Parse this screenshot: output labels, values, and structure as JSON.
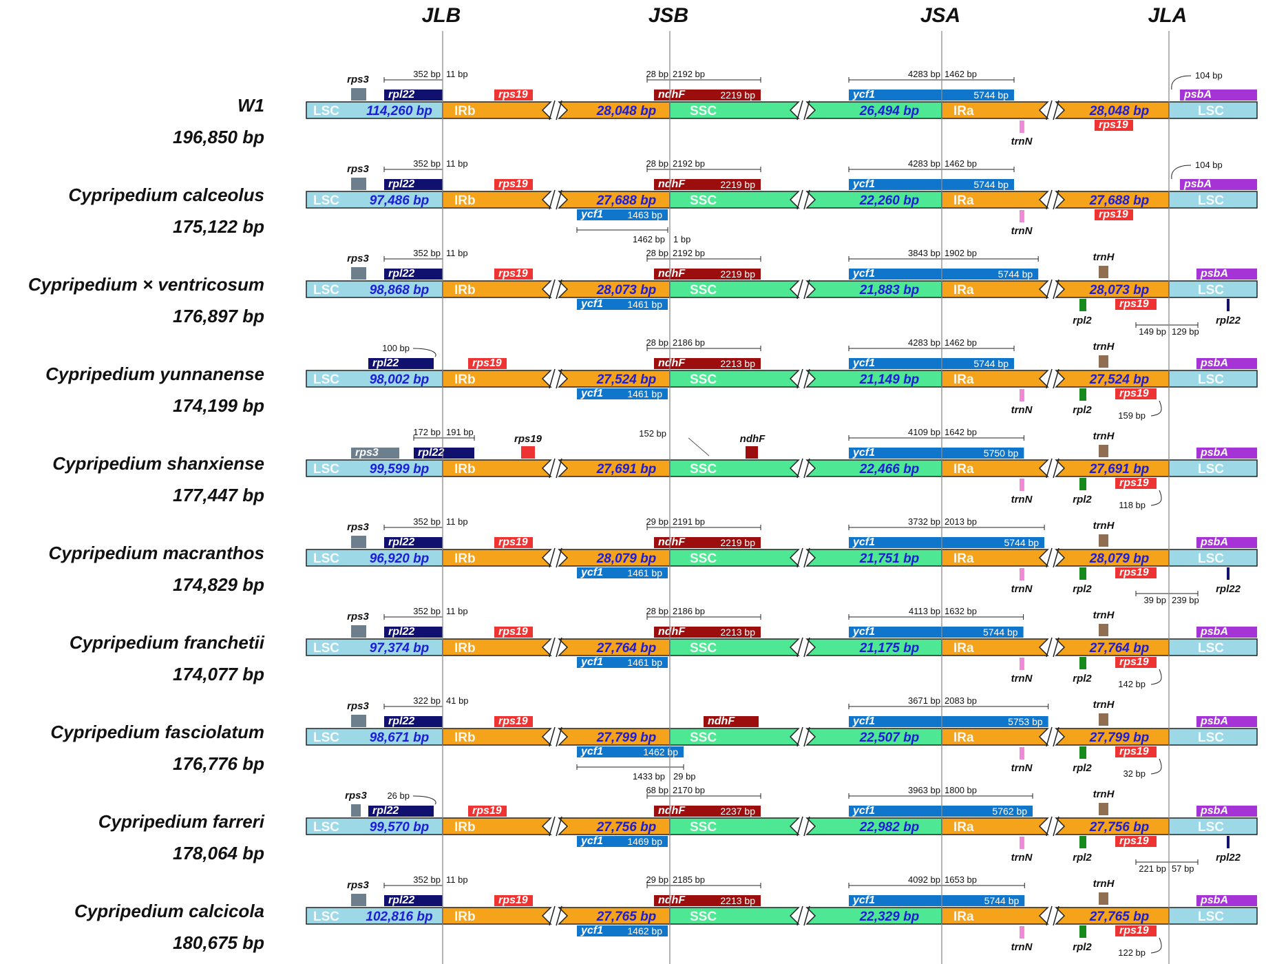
{
  "junctions": [
    "JLB",
    "JSB",
    "JSA",
    "JLA"
  ],
  "region_labels": {
    "lsc": "LSC",
    "irb": "IRb",
    "ssc": "SSC",
    "ira": "IRa"
  },
  "colors": {
    "lsc": "#9cd8e6",
    "ir": "#f5a31a",
    "ssc": "#4ee895",
    "gene_dark_navy": "#10106e",
    "gene_red": "#ee3333",
    "gene_dark_red": "#9c0d0d",
    "gene_blue": "#1076cc",
    "gene_purple": "#a633d6",
    "gene_grey": "#6d7f8d",
    "gene_brown": "#8f6e52",
    "gene_green": "#168a1c",
    "gene_pink": "#f08ad6",
    "length_text": "#1d1dd6"
  },
  "species": [
    {
      "name": "W1",
      "total": "196,850 bp",
      "lsc": "114,260 bp",
      "ir": "28,048 bp",
      "ssc": "26,494 bp",
      "jlb": {
        "left": "352 bp",
        "right": "11 bp"
      },
      "jsb": {
        "left": "28 bp",
        "right": "2192 bp",
        "ndhf_len": "2219 bp"
      },
      "jsa": {
        "left": "4283 bp",
        "right": "1462 bp",
        "ycf1_len": "5744 bp"
      },
      "jla": {
        "psba": "104 bp"
      }
    },
    {
      "name": "Cypripedium  calceolus",
      "total": "175,122 bp",
      "lsc": "97,486 bp",
      "ir": "27,688 bp",
      "ssc": "22,260 bp",
      "jlb": {
        "left": "352 bp",
        "right": "11 bp"
      },
      "jsb": {
        "left": "28 bp",
        "right": "2192 bp",
        "ndhf_len": "2219 bp",
        "ycf1_len": "1463 bp",
        "below_left": "1462 bp",
        "below_right": "1 bp"
      },
      "jsa": {
        "left": "4283 bp",
        "right": "1462 bp",
        "ycf1_len": "5744 bp"
      },
      "jla": {
        "psba": "104 bp"
      }
    },
    {
      "name": "Cypripedium  ×  ventricosum",
      "total": "176,897 bp",
      "lsc": "98,868 bp",
      "ir": "28,073 bp",
      "ssc": "21,883 bp",
      "jlb": {
        "left": "352 bp",
        "right": "11 bp"
      },
      "jsb": {
        "left": "28 bp",
        "right": "2192 bp",
        "ndhf_len": "2219 bp",
        "ycf1_len": "1461 bp"
      },
      "jsa": {
        "left": "3843 bp",
        "right": "1902 bp",
        "ycf1_len": "5744 bp"
      },
      "jla": {
        "left": "149 bp",
        "right": "129 bp"
      }
    },
    {
      "name": "Cypripedium yunnanense",
      "total": "174,199 bp",
      "lsc": "98,002 bp",
      "ir": "27,524 bp",
      "ssc": "21,149 bp",
      "jlb": {
        "rpl22": "100 bp"
      },
      "jsb": {
        "left": "28 bp",
        "right": "2186 bp",
        "ndhf_len": "2213 bp",
        "ycf1_len": "1461 bp"
      },
      "jsa": {
        "left": "4283 bp",
        "right": "1462 bp",
        "ycf1_len": "5744 bp"
      },
      "jla": {
        "rps19": "159 bp"
      }
    },
    {
      "name": "Cypripedium shanxiense",
      "total": "177,447 bp",
      "lsc": "99,599 bp",
      "ir": "27,691 bp",
      "ssc": "22,466 bp",
      "jlb": {
        "left": "172 bp",
        "right": "191 bp"
      },
      "jsb": {
        "ndhf_dist": "152 bp"
      },
      "jsa": {
        "left": "4109 bp",
        "right": "1642 bp",
        "ycf1_len": "5750 bp"
      },
      "jla": {
        "rps19": "118 bp"
      }
    },
    {
      "name": "Cypripedium macranthos",
      "total": "174,829 bp",
      "lsc": "96,920 bp",
      "ir": "28,079 bp",
      "ssc": "21,751 bp",
      "jlb": {
        "left": "352 bp",
        "right": "11 bp"
      },
      "jsb": {
        "left": "29 bp",
        "right": "2191 bp",
        "ndhf_len": "2219 bp",
        "ycf1_len": "1461 bp"
      },
      "jsa": {
        "left": "3732 bp",
        "right": "2013 bp",
        "ycf1_len": "5744 bp"
      },
      "jla": {
        "left": "39 bp",
        "right": "239 bp"
      }
    },
    {
      "name": "Cypripedium franchetii",
      "total": "174,077 bp",
      "lsc": "97,374 bp",
      "ir": "27,764 bp",
      "ssc": "21,175 bp",
      "jlb": {
        "left": "352 bp",
        "right": "11 bp"
      },
      "jsb": {
        "left": "28 bp",
        "right": "2186 bp",
        "ndhf_len": "2213 bp",
        "ycf1_len": "1461 bp"
      },
      "jsa": {
        "left": "4113 bp",
        "right": "1632 bp",
        "ycf1_len": "5744 bp"
      },
      "jla": {
        "rps19": "142 bp"
      }
    },
    {
      "name": "Cypripedium fasciolatum",
      "total": "176,776 bp",
      "lsc": "98,671 bp",
      "ir": "27,799 bp",
      "ssc": "22,507 bp",
      "jlb": {
        "left": "322 bp",
        "right": "41 bp"
      },
      "jsb": {
        "ycf1_len": "1462 bp",
        "below_left": "1433 bp",
        "below_right": "29 bp"
      },
      "jsa": {
        "left": "3671 bp",
        "right": "2083 bp",
        "ycf1_len": "5753 bp"
      },
      "jla": {
        "rps19": "32 bp"
      }
    },
    {
      "name": "Cypripedium farreri",
      "total": "178,064 bp",
      "lsc": "99,570 bp",
      "ir": "27,756 bp",
      "ssc": "22,982 bp",
      "jlb": {
        "rpl22": "26 bp"
      },
      "jsb": {
        "left": "68 bp",
        "right": "2170 bp",
        "ndhf_len": "2237 bp",
        "ycf1_len": "1469 bp"
      },
      "jsa": {
        "left": "3963 bp",
        "right": "1800 bp",
        "ycf1_len": "5762 bp"
      },
      "jla": {
        "left": "221 bp",
        "right": "57 bp"
      }
    },
    {
      "name": "Cypripedium calcicola",
      "total": "180,675 bp",
      "lsc": "102,816 bp",
      "ir": "27,765 bp",
      "ssc": "22,329 bp",
      "jlb": {
        "left": "352 bp",
        "right": "11 bp"
      },
      "jsb": {
        "left": "29 bp",
        "right": "2185 bp",
        "ndhf_len": "2213 bp",
        "ycf1_len": "1462 bp"
      },
      "jsa": {
        "left": "4092 bp",
        "right": "1653 bp",
        "ycf1_len": "5744 bp"
      },
      "jla": {
        "rps19": "122 bp"
      }
    }
  ]
}
